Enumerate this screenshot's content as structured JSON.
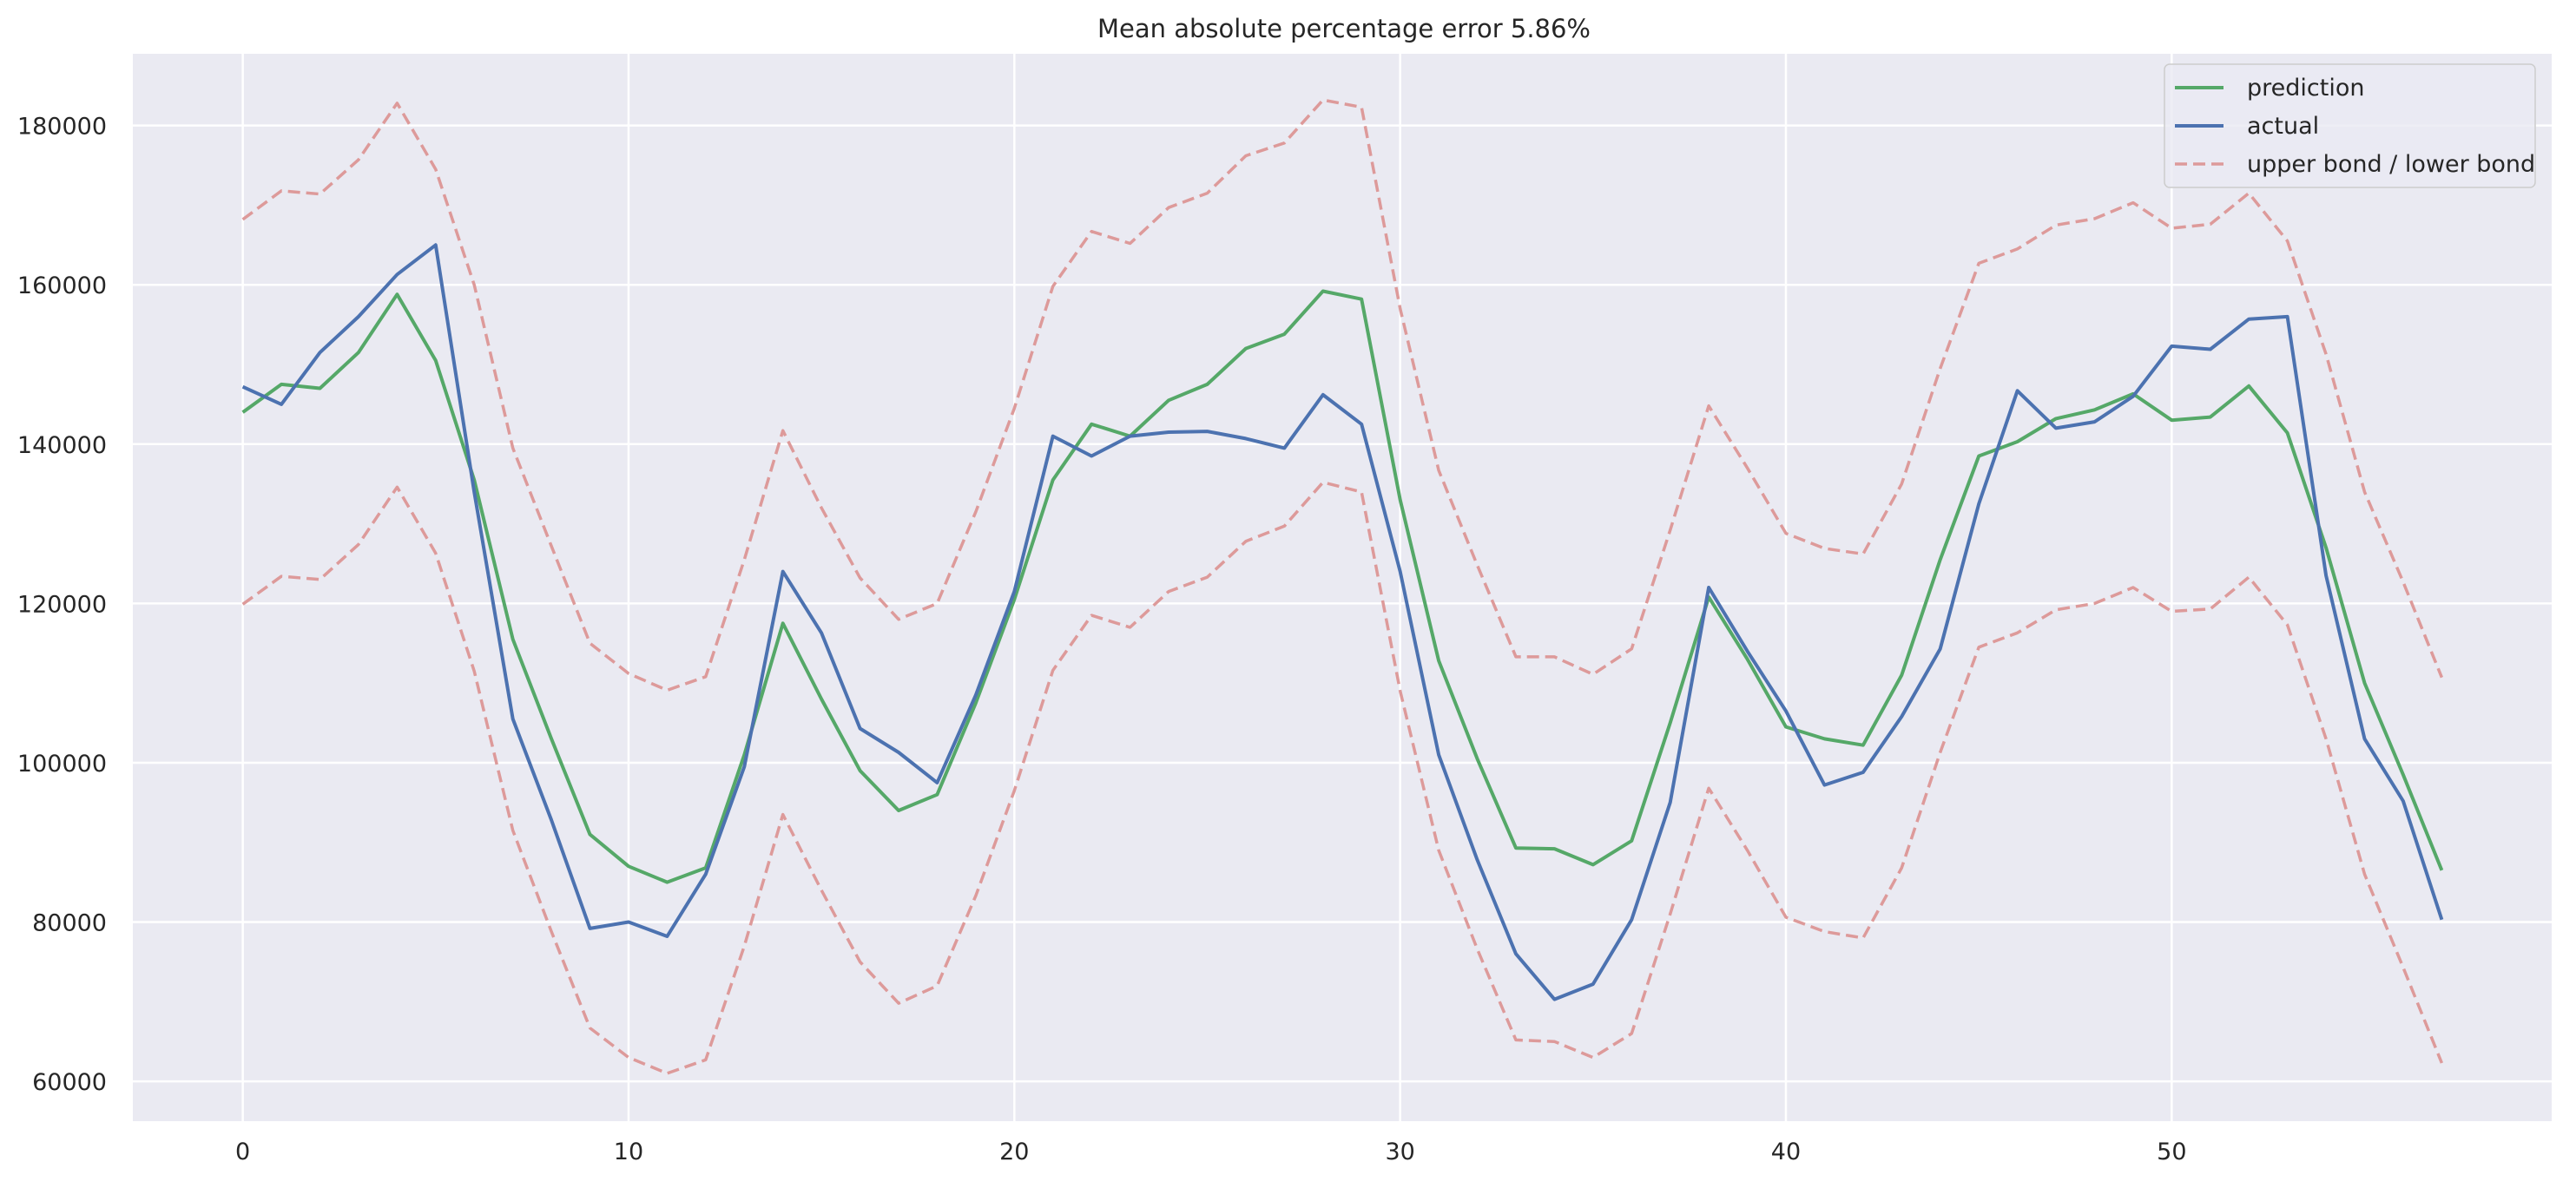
{
  "chart_data": {
    "type": "line",
    "title": "Mean absolute percentage error 5.86%",
    "xlabel": "",
    "ylabel": "",
    "xlim": [
      -2.85,
      59.85
    ],
    "ylim": [
      55000,
      189000
    ],
    "xticks": [
      0,
      10,
      20,
      30,
      40,
      50
    ],
    "xtick_labels": [
      "0",
      "10",
      "20",
      "30",
      "40",
      "50"
    ],
    "yticks": [
      60000,
      80000,
      100000,
      120000,
      140000,
      160000,
      180000
    ],
    "ytick_labels": [
      "60000",
      "80000",
      "100000",
      "120000",
      "140000",
      "160000",
      "180000"
    ],
    "grid": true,
    "legend_position": "top-right",
    "x": [
      0,
      1,
      2,
      3,
      4,
      5,
      6,
      7,
      8,
      9,
      10,
      11,
      12,
      13,
      14,
      15,
      16,
      17,
      18,
      19,
      20,
      21,
      22,
      23,
      24,
      25,
      26,
      27,
      28,
      29,
      30,
      31,
      32,
      33,
      34,
      35,
      36,
      37,
      38,
      39,
      40,
      41,
      42,
      43,
      44,
      45,
      46,
      47,
      48,
      49,
      50,
      51,
      52,
      53,
      54,
      55,
      56,
      57
    ],
    "series": [
      {
        "name": "prediction",
        "color": "#55a868",
        "style": "solid",
        "values": [
          144000,
          147500,
          147000,
          151500,
          158800,
          150500,
          135500,
          115500,
          103000,
          91000,
          87000,
          85000,
          86800,
          101000,
          117500,
          108000,
          99000,
          94000,
          96000,
          107500,
          120500,
          135500,
          142500,
          141000,
          145500,
          147500,
          152000,
          153800,
          159200,
          158200,
          133000,
          112800,
          100500,
          89300,
          89200,
          87200,
          90200,
          105000,
          120800,
          113000,
          104500,
          103000,
          102200,
          111000,
          125500,
          138500,
          140300,
          143200,
          144300,
          146300,
          143000,
          143400,
          147300,
          141400,
          127000,
          110000,
          98500,
          86500
        ]
      },
      {
        "name": "actual",
        "color": "#4c72b0",
        "style": "solid",
        "values": [
          147200,
          145000,
          151500,
          156000,
          161300,
          165000,
          134000,
          105500,
          92800,
          79200,
          80000,
          78200,
          86000,
          99500,
          124000,
          116300,
          104300,
          101300,
          97500,
          108500,
          121500,
          141000,
          138500,
          141000,
          141500,
          141600,
          140700,
          139500,
          146200,
          142500,
          124000,
          101000,
          87800,
          76000,
          70300,
          72200,
          80300,
          95000,
          122000,
          114000,
          106500,
          97200,
          98800,
          105800,
          114300,
          132500,
          146700,
          142000,
          142800,
          146000,
          152300,
          151900,
          155700,
          156000,
          123500,
          103000,
          95200,
          80300
        ]
      },
      {
        "name": "upper bond / lower bond",
        "color": "#dd9a9a",
        "style": "dashed",
        "values": [
          168200,
          171800,
          171400,
          175700,
          182800,
          174500,
          160000,
          139500,
          127200,
          115000,
          111200,
          109100,
          110800,
          125500,
          141700,
          132000,
          123200,
          118000,
          120000,
          131500,
          144500,
          159800,
          166700,
          165200,
          169700,
          171500,
          176200,
          177800,
          183200,
          182300,
          157000,
          136700,
          124800,
          113300,
          113300,
          111100,
          114300,
          129200,
          144800,
          137000,
          128800,
          126900,
          126200,
          135000,
          149500,
          162700,
          164500,
          167500,
          168300,
          170300,
          167100,
          167600,
          171500,
          165500,
          151300,
          134000,
          122700,
          110700
        ]
      },
      {
        "name": "",
        "color": "#dd9a9a",
        "style": "dashed",
        "values": [
          119900,
          123400,
          123000,
          127400,
          134600,
          126300,
          111500,
          91500,
          78800,
          66700,
          63000,
          61000,
          62700,
          77000,
          93500,
          84000,
          75000,
          69800,
          72000,
          83300,
          96500,
          111600,
          118500,
          117000,
          121500,
          123300,
          127800,
          129700,
          135200,
          134000,
          109000,
          89000,
          76600,
          65200,
          65000,
          63000,
          66000,
          81000,
          96800,
          89000,
          80600,
          78800,
          78000,
          86800,
          101300,
          114500,
          116300,
          119200,
          120000,
          122000,
          119000,
          119300,
          123300,
          117300,
          103000,
          86000,
          74300,
          62300
        ]
      }
    ]
  }
}
